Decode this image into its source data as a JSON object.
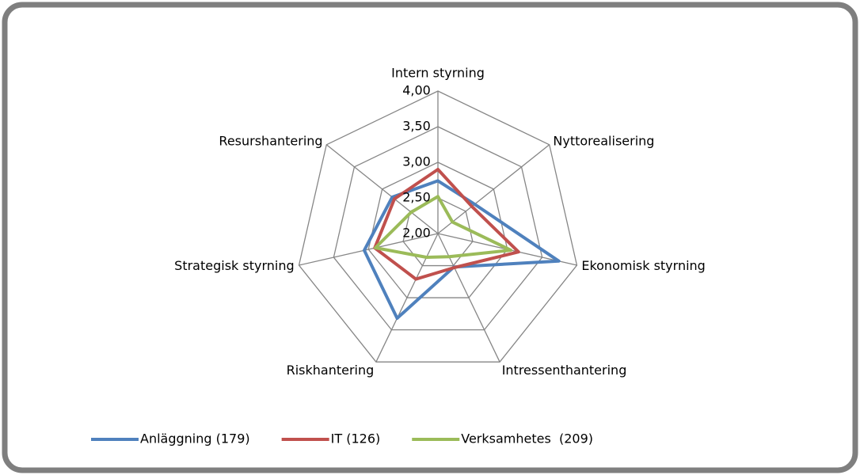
{
  "chart_data": {
    "type": "radar",
    "categories": [
      "Intern styrning",
      "Nyttorealisering",
      "Ekonomisk styrning",
      "Intressenthantering",
      "Riskhantering",
      "Strategisk styrning",
      "Resurshantering"
    ],
    "series": [
      {
        "name": "Anläggning (179)",
        "color": "#4f81bd",
        "values": [
          2.74,
          2.66,
          3.74,
          2.52,
          3.32,
          3.06,
          2.82
        ]
      },
      {
        "name": "IT (126)",
        "color": "#c0504d",
        "values": [
          2.9,
          2.61,
          3.16,
          2.53,
          2.71,
          2.91,
          2.78
        ]
      },
      {
        "name": "Verksamhetes  (209)",
        "color": "#9bbb59",
        "values": [
          2.52,
          2.26,
          3.05,
          2.36,
          2.37,
          2.9,
          2.48
        ]
      }
    ],
    "ylim": [
      2,
      4
    ],
    "yticks": [
      {
        "value": 2,
        "label": "2,00"
      },
      {
        "value": 2.5,
        "label": "2,50"
      },
      {
        "value": 3,
        "label": "3,00"
      },
      {
        "value": 3.5,
        "label": "3,50"
      },
      {
        "value": 4,
        "label": "4,00"
      }
    ],
    "grid": true,
    "legend": "bottom"
  }
}
